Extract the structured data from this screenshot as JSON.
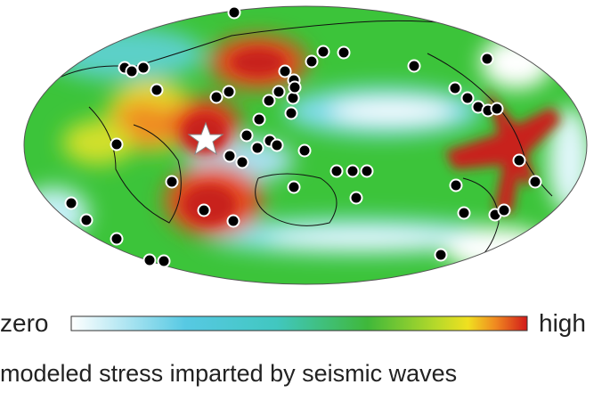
{
  "legend": {
    "low_label": "zero",
    "high_label": "high"
  },
  "caption": "modeled stress imparted by seismic waves"
}
